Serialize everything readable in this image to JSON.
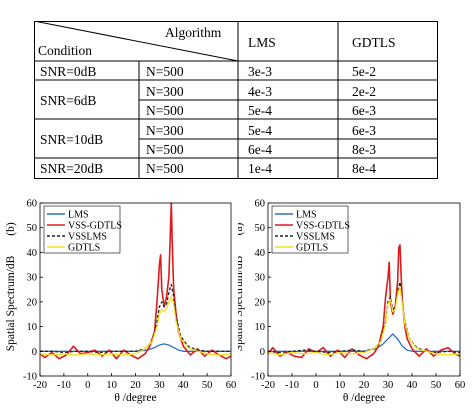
{
  "table": {
    "header": {
      "algorithm": "Algorithm",
      "condition": "Condition",
      "col_lms": "LMS",
      "col_gdtls": "GDTLS"
    },
    "rows": [
      {
        "snr": "SNR=0dB",
        "n": "N=500",
        "lms": "3e-3",
        "gdtls": "5e-2"
      },
      {
        "snr": "SNR=6dB",
        "n": "N=300",
        "lms": "4e-3",
        "gdtls": "2e-2"
      },
      {
        "snr": "",
        "n": "N=500",
        "lms": "5e-4",
        "gdtls": "6e-3"
      },
      {
        "snr": "SNR=10dB",
        "n": "N=300",
        "lms": "5e-4",
        "gdtls": "6e-3"
      },
      {
        "snr": "",
        "n": "N=500",
        "lms": "6e-4",
        "gdtls": "8e-3"
      },
      {
        "snr": "SNR=20dB",
        "n": "N=500",
        "lms": "1e-4",
        "gdtls": "8e-4"
      }
    ]
  },
  "colors": {
    "LMS": "#2a72c4",
    "VSS-GDTLS": "#e01a1a",
    "VSSLMS": "#222222",
    "GDTLS": "#f2e020"
  },
  "chart_data": [
    {
      "type": "line",
      "panel_label": "(b)",
      "xlabel": "θ /degree",
      "ylabel": "Spatial Spectrum/dB",
      "xlim": [
        -20,
        60
      ],
      "ylim": [
        -10,
        60
      ],
      "xticks": [
        "-20",
        "-10",
        "0",
        "10",
        "20",
        "30",
        "40",
        "50",
        "60"
      ],
      "yticks": [
        "-10",
        "0",
        "10",
        "20",
        "30",
        "40",
        "50",
        "60"
      ],
      "legend_position": "top-left",
      "series": [
        {
          "name": "LMS",
          "style": "solid",
          "x": [
            -20,
            -10,
            0,
            10,
            20,
            25,
            28,
            30,
            32,
            34,
            36,
            38,
            40,
            45,
            50,
            55,
            60
          ],
          "y": [
            0,
            0,
            0,
            0,
            0,
            0.5,
            1.5,
            2.5,
            3,
            2.5,
            1.5,
            0.5,
            0,
            0,
            0,
            0,
            0
          ]
        },
        {
          "name": "VSS-GDTLS",
          "style": "solid",
          "x": [
            -20,
            -18,
            -15,
            -12,
            -9,
            -6,
            -3,
            0,
            3,
            6,
            9,
            12,
            15,
            18,
            21,
            24,
            26,
            28,
            29,
            30,
            30.5,
            31,
            32,
            33,
            34,
            34.5,
            35,
            35.5,
            36,
            37,
            38,
            40,
            43,
            46,
            49,
            52,
            55,
            58,
            60
          ],
          "y": [
            -1,
            -2.5,
            -0.5,
            -3,
            -1.5,
            2,
            -1,
            -0.5,
            0.5,
            -2,
            0.5,
            -3,
            0.5,
            -1.5,
            -3,
            -1,
            2,
            8,
            20,
            35,
            39,
            25,
            18,
            22,
            30,
            45,
            60,
            40,
            25,
            15,
            8,
            2,
            -1.5,
            1,
            -2,
            0.5,
            -1.5,
            -3,
            -2
          ]
        },
        {
          "name": "VSSLMS",
          "style": "dashed",
          "x": [
            -20,
            -15,
            -10,
            -5,
            0,
            5,
            10,
            15,
            20,
            24,
            27,
            29,
            30,
            31,
            32,
            33,
            34,
            35,
            36,
            37,
            39,
            42,
            46,
            50,
            55,
            60
          ],
          "y": [
            0,
            0,
            -0.5,
            0,
            0,
            -0.5,
            0,
            0,
            0,
            1,
            4,
            12,
            18,
            20,
            18,
            19,
            24,
            27,
            22,
            14,
            6,
            2,
            0.5,
            0,
            0,
            0
          ]
        },
        {
          "name": "GDTLS",
          "style": "solid",
          "x": [
            -20,
            -15,
            -10,
            -5,
            0,
            5,
            10,
            15,
            20,
            24,
            27,
            29,
            30,
            31,
            32,
            33,
            34,
            35,
            36,
            37,
            39,
            42,
            46,
            50,
            55,
            60
          ],
          "y": [
            -1,
            -1.5,
            -1,
            -1.5,
            -1,
            -1.5,
            -1,
            -1.5,
            -1,
            1,
            4,
            10,
            15,
            17,
            16,
            17,
            20,
            22,
            19,
            12,
            5,
            1.5,
            0,
            -1,
            -1.5,
            -1
          ]
        }
      ]
    },
    {
      "type": "line",
      "panel_label": "(a)",
      "xlabel": "θ /degree",
      "ylabel": "Spatial Spectrum/dB",
      "xlim": [
        -20,
        60
      ],
      "ylim": [
        -10,
        60
      ],
      "xticks": [
        "-20",
        "-10",
        "0",
        "10",
        "20",
        "30",
        "40",
        "50",
        "60"
      ],
      "yticks": [
        "-10",
        "0",
        "10",
        "20",
        "30",
        "40",
        "50",
        "60"
      ],
      "legend_position": "top-left",
      "series": [
        {
          "name": "LMS",
          "style": "solid",
          "x": [
            -20,
            -10,
            0,
            10,
            20,
            25,
            28,
            30,
            32,
            34,
            36,
            38,
            40,
            45,
            50,
            55,
            60
          ],
          "y": [
            0,
            0,
            0,
            0,
            0,
            1,
            3,
            5,
            7,
            5,
            2,
            0.5,
            0,
            0,
            0,
            0,
            0
          ]
        },
        {
          "name": "VSS-GDTLS",
          "style": "solid",
          "x": [
            -20,
            -18,
            -15,
            -12,
            -9,
            -6,
            -3,
            0,
            3,
            6,
            9,
            12,
            15,
            18,
            21,
            24,
            26,
            28,
            29,
            30,
            30.5,
            31,
            32,
            33,
            34,
            34.5,
            35,
            35.5,
            36,
            37,
            38,
            40,
            43,
            46,
            49,
            52,
            55,
            58,
            60
          ],
          "y": [
            -1,
            1.5,
            -2,
            -0.5,
            -2,
            -2.5,
            1,
            -0.5,
            1.5,
            -2,
            0.5,
            -2.5,
            1,
            -1.5,
            -3,
            -1,
            2,
            10,
            22,
            30,
            36,
            20,
            15,
            18,
            28,
            42,
            43,
            30,
            20,
            10,
            5,
            1,
            -2,
            1,
            -2,
            0.5,
            1.5,
            -1,
            -2
          ]
        },
        {
          "name": "VSSLMS",
          "style": "dashed",
          "x": [
            -20,
            -15,
            -10,
            -5,
            0,
            5,
            10,
            15,
            20,
            24,
            27,
            29,
            30,
            31,
            32,
            33,
            34,
            35,
            36,
            37,
            39,
            42,
            46,
            50,
            55,
            60
          ],
          "y": [
            0,
            -0.5,
            0,
            0.5,
            0,
            -0.5,
            0,
            0.5,
            0,
            1,
            4,
            12,
            20,
            22,
            17,
            18,
            24,
            28,
            20,
            12,
            5,
            1.5,
            0,
            -0.5,
            0,
            -0.5
          ]
        },
        {
          "name": "GDTLS",
          "style": "solid",
          "x": [
            -20,
            -15,
            -10,
            -5,
            0,
            5,
            10,
            15,
            20,
            24,
            27,
            29,
            30,
            31,
            32,
            33,
            34,
            35,
            36,
            37,
            39,
            42,
            46,
            50,
            55,
            60
          ],
          "y": [
            -0.5,
            -1.5,
            -0.5,
            -1,
            -0.5,
            -1.5,
            -0.5,
            -1,
            -0.5,
            1,
            4,
            11,
            19,
            21,
            16,
            17,
            23,
            26,
            19,
            11,
            5,
            1,
            0,
            -1,
            -1.5,
            -1
          ]
        }
      ]
    }
  ]
}
